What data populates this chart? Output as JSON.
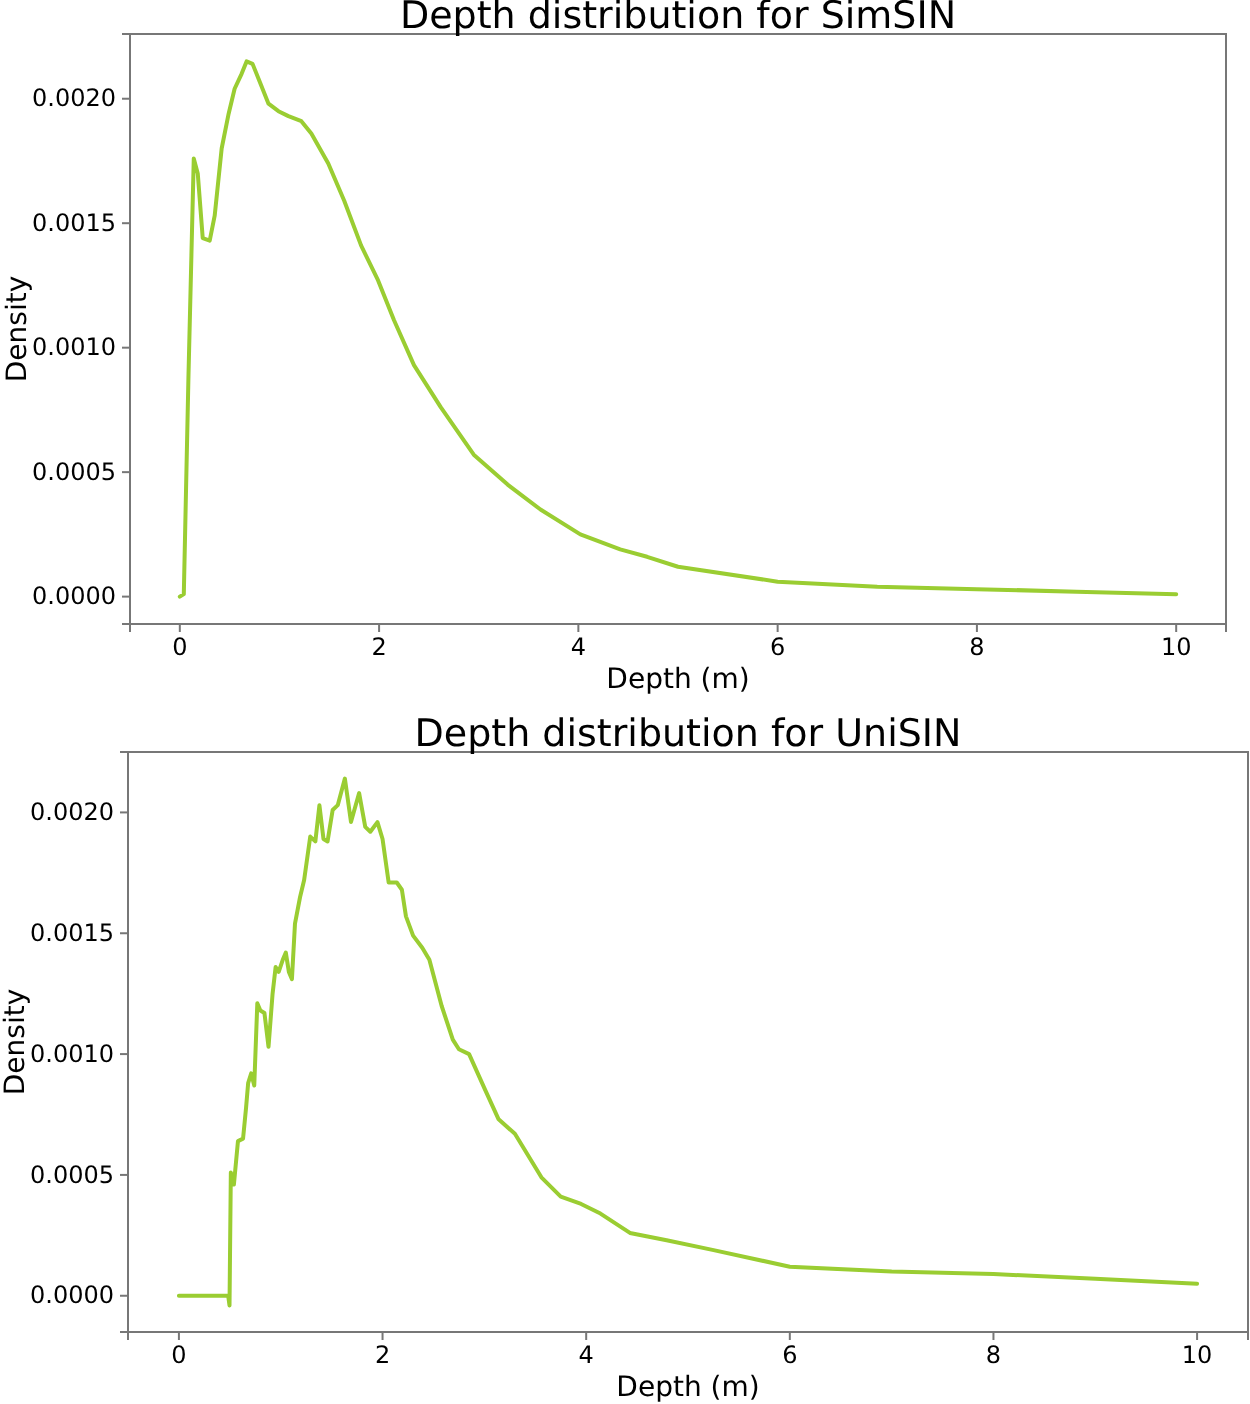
{
  "chart_data": [
    {
      "type": "line",
      "title": "Depth distribution for SimSIN",
      "xlabel": "Depth (m)",
      "ylabel": "Density",
      "xlim": [
        -0.5,
        10.5
      ],
      "ylim": [
        -0.00011,
        0.00226
      ],
      "xticks": [
        0,
        2,
        4,
        6,
        8,
        10
      ],
      "yticks": [
        {
          "value": 0,
          "label": "0.0000"
        },
        {
          "value": 0.0005,
          "label": "0.0005"
        },
        {
          "value": 0.001,
          "label": "0.0010"
        },
        {
          "value": 0.0015,
          "label": "0.0015"
        },
        {
          "value": 0.002,
          "label": "0.0020"
        }
      ],
      "line_style": "solid",
      "marker": "none",
      "x": [
        0,
        0.04,
        0.087,
        0.14,
        0.18,
        0.23,
        0.3,
        0.35,
        0.42,
        0.49,
        0.55,
        0.62,
        0.67,
        0.73,
        0.8,
        0.89,
        0.99,
        1.09,
        1.22,
        1.32,
        1.49,
        1.65,
        1.82,
        1.99,
        2.15,
        2.35,
        2.62,
        2.95,
        3.29,
        3.62,
        4.02,
        4.42,
        4.69,
        5,
        6,
        7,
        8,
        9,
        10
      ],
      "series": [
        {
          "color": "#9acd32",
          "values": [
            0,
            1e-05,
            0.00089,
            0.00176,
            0.0017,
            0.00144,
            0.00143,
            0.00153,
            0.0018,
            0.00194,
            0.00204,
            0.0021,
            0.00215,
            0.00214,
            0.00207,
            0.00198,
            0.00195,
            0.00193,
            0.00191,
            0.00186,
            0.00174,
            0.00159,
            0.00141,
            0.00127,
            0.00111,
            0.00093,
            0.00076,
            0.00057,
            0.00045,
            0.00035,
            0.00025,
            0.00019,
            0.00016,
            0.00012,
            6e-05,
            4e-05,
            3e-05,
            2e-05,
            1e-05
          ]
        }
      ]
    },
    {
      "type": "line",
      "title": "Depth distribution for UniSIN",
      "xlabel": "Depth (m)",
      "ylabel": "Density",
      "xlim": [
        -0.5,
        10.5
      ],
      "ylim": [
        -0.00015,
        0.00225
      ],
      "xticks": [
        0,
        2,
        4,
        6,
        8,
        10
      ],
      "yticks": [
        {
          "value": 0,
          "label": "0.0000"
        },
        {
          "value": 0.0005,
          "label": "0.0005"
        },
        {
          "value": 0.001,
          "label": "0.0010"
        },
        {
          "value": 0.0015,
          "label": "0.0015"
        },
        {
          "value": 0.002,
          "label": "0.0020"
        }
      ],
      "line_style": "solid",
      "marker": "none",
      "x": [
        0,
        0.484,
        0.497,
        0.51,
        0.54,
        0.58,
        0.63,
        0.66,
        0.68,
        0.71,
        0.74,
        0.77,
        0.8,
        0.84,
        0.88,
        0.92,
        0.95,
        0.98,
        1.02,
        1.05,
        1.08,
        1.11,
        1.14,
        1.19,
        1.23,
        1.25,
        1.29,
        1.34,
        1.38,
        1.42,
        1.46,
        1.51,
        1.56,
        1.63,
        1.69,
        1.77,
        1.83,
        1.88,
        1.95,
        2.0,
        2.06,
        2.14,
        2.19,
        2.23,
        2.3,
        2.39,
        2.46,
        2.58,
        2.69,
        2.75,
        2.85,
        3.01,
        3.14,
        3.3,
        3.56,
        3.75,
        3.95,
        4.14,
        4.43,
        4.79,
        5.24,
        6,
        7,
        8,
        9,
        10
      ],
      "series": [
        {
          "color": "#9acd32",
          "values": [
            0,
            0,
            -4e-05,
            0.00051,
            0.00046,
            0.00064,
            0.00065,
            0.00078,
            0.00088,
            0.00092,
            0.00087,
            0.00121,
            0.00118,
            0.00117,
            0.00103,
            0.00125,
            0.00136,
            0.00134,
            0.00139,
            0.00142,
            0.00134,
            0.00131,
            0.00154,
            0.00165,
            0.00172,
            0.00178,
            0.0019,
            0.00188,
            0.00203,
            0.00189,
            0.00188,
            0.00201,
            0.00203,
            0.00214,
            0.00196,
            0.00208,
            0.00194,
            0.00192,
            0.00196,
            0.00189,
            0.00171,
            0.00171,
            0.00168,
            0.00157,
            0.00149,
            0.00144,
            0.00139,
            0.0012,
            0.00106,
            0.00102,
            0.001,
            0.00085,
            0.00073,
            0.00067,
            0.00049,
            0.00041,
            0.00038,
            0.00034,
            0.00026,
            0.00023,
            0.00019,
            0.00012,
            0.0001,
            9e-05,
            7e-05,
            5e-05
          ]
        }
      ]
    }
  ]
}
